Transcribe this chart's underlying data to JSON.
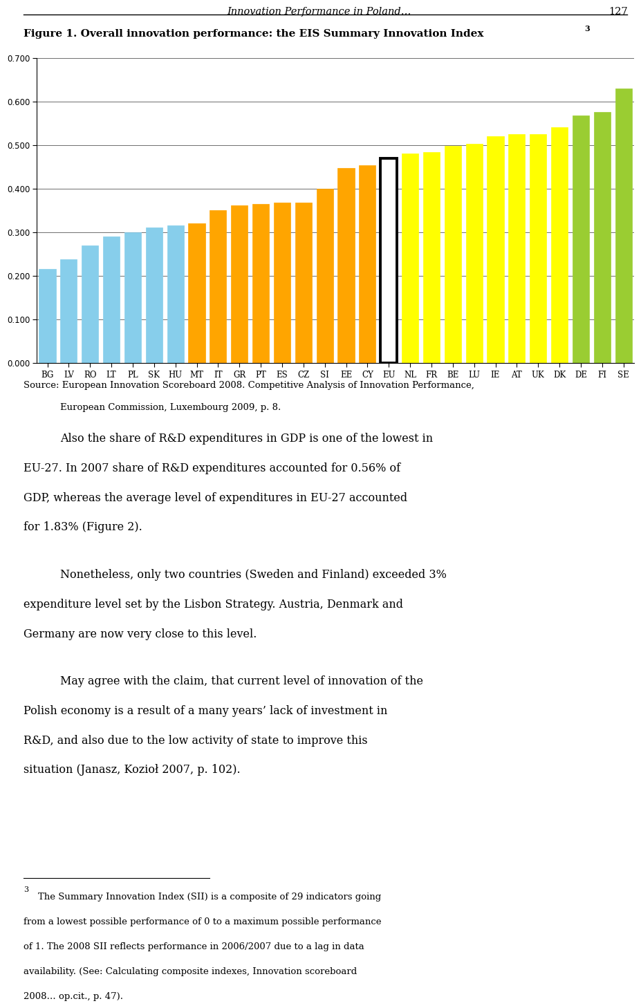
{
  "categories": [
    "BG",
    "LV",
    "RO",
    "LT",
    "PL",
    "SK",
    "HU",
    "MT",
    "IT",
    "GR",
    "PT",
    "ES",
    "CZ",
    "SI",
    "EE",
    "CY",
    "EU",
    "NL",
    "FR",
    "BE",
    "LU",
    "IE",
    "AT",
    "UK",
    "DK",
    "DE",
    "FI",
    "SE"
  ],
  "values": [
    0.215,
    0.237,
    0.27,
    0.29,
    0.3,
    0.31,
    0.315,
    0.32,
    0.35,
    0.362,
    0.365,
    0.367,
    0.367,
    0.4,
    0.447,
    0.453,
    0.47,
    0.48,
    0.483,
    0.498,
    0.502,
    0.52,
    0.525,
    0.525,
    0.54,
    0.567,
    0.575,
    0.63
  ],
  "bar_colors": [
    "#87CEEB",
    "#87CEEB",
    "#87CEEB",
    "#87CEEB",
    "#87CEEB",
    "#87CEEB",
    "#87CEEB",
    "#FFA500",
    "#FFA500",
    "#FFA500",
    "#FFA500",
    "#FFA500",
    "#FFA500",
    "#FFA500",
    "#FFA500",
    "#FFA500",
    "#FFFFFF",
    "#FFFF00",
    "#FFFF00",
    "#FFFF00",
    "#FFFF00",
    "#FFFF00",
    "#FFFF00",
    "#FFFF00",
    "#FFFF00",
    "#9ACD32",
    "#9ACD32",
    "#9ACD32"
  ],
  "bar_edgecolors": [
    "#87CEEB",
    "#87CEEB",
    "#87CEEB",
    "#87CEEB",
    "#87CEEB",
    "#87CEEB",
    "#87CEEB",
    "#FFA500",
    "#FFA500",
    "#FFA500",
    "#FFA500",
    "#FFA500",
    "#FFA500",
    "#FFA500",
    "#FFA500",
    "#FFA500",
    "#000000",
    "#FFFF00",
    "#FFFF00",
    "#FFFF00",
    "#FFFF00",
    "#FFFF00",
    "#FFFF00",
    "#FFFF00",
    "#FFFF00",
    "#9ACD32",
    "#9ACD32",
    "#9ACD32"
  ],
  "eu_index": 16,
  "ylim": [
    0.0,
    0.7
  ],
  "yticks": [
    0.0,
    0.1,
    0.2,
    0.3,
    0.4,
    0.5,
    0.6,
    0.7
  ],
  "page_header": "Innovation Performance in Poland…",
  "page_number": "127",
  "figure_title": "Figure 1. Overall innovation performance: the EIS Summary Innovation Index",
  "superscript": "3",
  "source_line1": "Source: European Innovation Scoreboard 2008. Competitive Analysis of Innovation Performance,",
  "source_line2": "European Commission, Luxembourg 2009, p. 8.",
  "body_para1": "Also the share of R&D expenditures in GDP is one of the lowest in EU-27. In 2007 share of R&D expenditures accounted for 0.56% of GDP, whereas the average level of expenditures in EU-27 accounted for 1.83% (Figure 2).",
  "body_para2": "Nonetheless, only two countries (Sweden and Finland) exceeded 3% expenditure level set by the Lisbon Strategy. Austria, Denmark and Germany are now very close to this level.",
  "body_para3": "May agree with the claim, that current level of innovation of the Polish economy is a result of a many years’ lack of investment in R&D, and also due to the low activity of state to improve this situation (Janasz, Kozioł 2007, p. 102).",
  "footnote_sup": "3",
  "footnote_body": " The Summary Innovation Index (SII) is a composite of 29 indicators going from a lowest possible performance of 0 to a maximum possible performance of 1. The 2008 SII reflects performance in 2006/2007 due to a lag in data availability. (See: Calculating composite indexes, Innovation scoreboard 2008… op.cit., p. 47).",
  "background_color": "#FFFFFF"
}
